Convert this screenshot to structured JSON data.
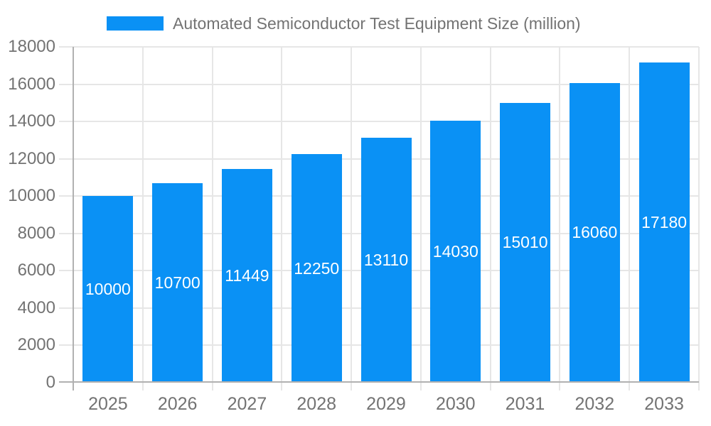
{
  "chart_data": {
    "type": "bar",
    "title": "Automated Semiconductor Test Equipment Size (million)",
    "categories": [
      "2025",
      "2026",
      "2027",
      "2028",
      "2029",
      "2030",
      "2031",
      "2032",
      "2033"
    ],
    "values": [
      10000,
      10700,
      11449,
      12250,
      13110,
      14030,
      15010,
      16060,
      17180
    ],
    "value_labels": [
      "10000",
      "10700",
      "11449",
      "12250",
      "13110",
      "14030",
      "15010",
      "16060",
      "17180"
    ],
    "xlabel": "",
    "ylabel": "",
    "ylim": [
      0,
      18000
    ],
    "y_ticks": [
      0,
      2000,
      4000,
      6000,
      8000,
      10000,
      12000,
      14000,
      16000,
      18000
    ],
    "grid": true,
    "legend_position": "top",
    "value_label_position": "inside-center",
    "colors": {
      "bar": "#0a91f5",
      "grid": "#e6e6e6",
      "axis": "#b1b1b1",
      "tick_label": "#737373",
      "value_label": "#ffffff",
      "background": "#ffffff"
    }
  }
}
